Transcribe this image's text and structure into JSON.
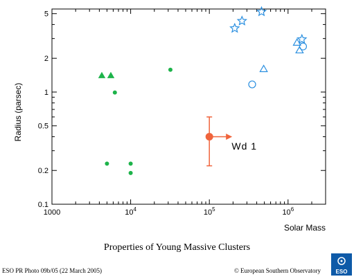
{
  "chart_data": {
    "type": "scatter",
    "xlabel": "Solar Mass",
    "ylabel": "Radius (parsec)",
    "x_scale": "log",
    "y_scale": "log",
    "xlim": [
      1000,
      3000000
    ],
    "ylim": [
      0.1,
      5.5
    ],
    "x_ticks": [
      {
        "value": 1000,
        "label": "1000"
      },
      {
        "value": 10000,
        "label": "10",
        "exp": "4"
      },
      {
        "value": 100000,
        "label": "10",
        "exp": "5"
      },
      {
        "value": 1000000,
        "label": "10",
        "exp": "6"
      }
    ],
    "y_ticks": [
      {
        "value": 0.1,
        "label": "0.1"
      },
      {
        "value": 0.2,
        "label": "0.2"
      },
      {
        "value": 0.5,
        "label": "0.5"
      },
      {
        "value": 1,
        "label": "1"
      },
      {
        "value": 2,
        "label": "2"
      },
      {
        "value": 5,
        "label": "5"
      }
    ],
    "series": [
      {
        "marker": "filled-triangle",
        "color": "#1db34a",
        "points": [
          {
            "x": 4300,
            "y": 1.4
          },
          {
            "x": 5600,
            "y": 1.4
          }
        ]
      },
      {
        "marker": "filled-circle",
        "color": "#1db34a",
        "points": [
          {
            "x": 6300,
            "y": 0.99
          },
          {
            "x": 5000,
            "y": 0.23
          },
          {
            "x": 10000,
            "y": 0.23
          },
          {
            "x": 10000,
            "y": 0.19
          },
          {
            "x": 32000,
            "y": 1.58
          }
        ]
      },
      {
        "marker": "open-star",
        "color": "#2a8fe0",
        "points": [
          {
            "x": 210000,
            "y": 3.7
          },
          {
            "x": 260000,
            "y": 4.3
          },
          {
            "x": 460000,
            "y": 5.2
          },
          {
            "x": 1500000,
            "y": 2.95
          }
        ]
      },
      {
        "marker": "open-triangle",
        "color": "#2a8fe0",
        "points": [
          {
            "x": 490000,
            "y": 1.6
          },
          {
            "x": 1300000,
            "y": 2.75
          },
          {
            "x": 1400000,
            "y": 2.35
          }
        ]
      },
      {
        "marker": "open-circle",
        "color": "#2a8fe0",
        "points": [
          {
            "x": 350000,
            "y": 1.17
          },
          {
            "x": 1550000,
            "y": 2.55
          }
        ]
      },
      {
        "marker": "errorbar-circle",
        "color": "#f0643c",
        "points": [
          {
            "x": 100000,
            "y": 0.4,
            "y_low": 0.22,
            "y_high": 0.6,
            "x_lower_limit": true
          }
        ]
      }
    ],
    "annotations": [
      {
        "text": "Wd 1",
        "x": 200000,
        "y": 0.33
      }
    ]
  },
  "caption": "Properties of Young Massive Clusters",
  "credit_left": "ESO PR Photo 09b/05 (22 March 2005)",
  "credit_right": "© European Southern Observatory",
  "logo": {
    "icon": "eso-logo-icon",
    "color": "#0e5aa8"
  }
}
